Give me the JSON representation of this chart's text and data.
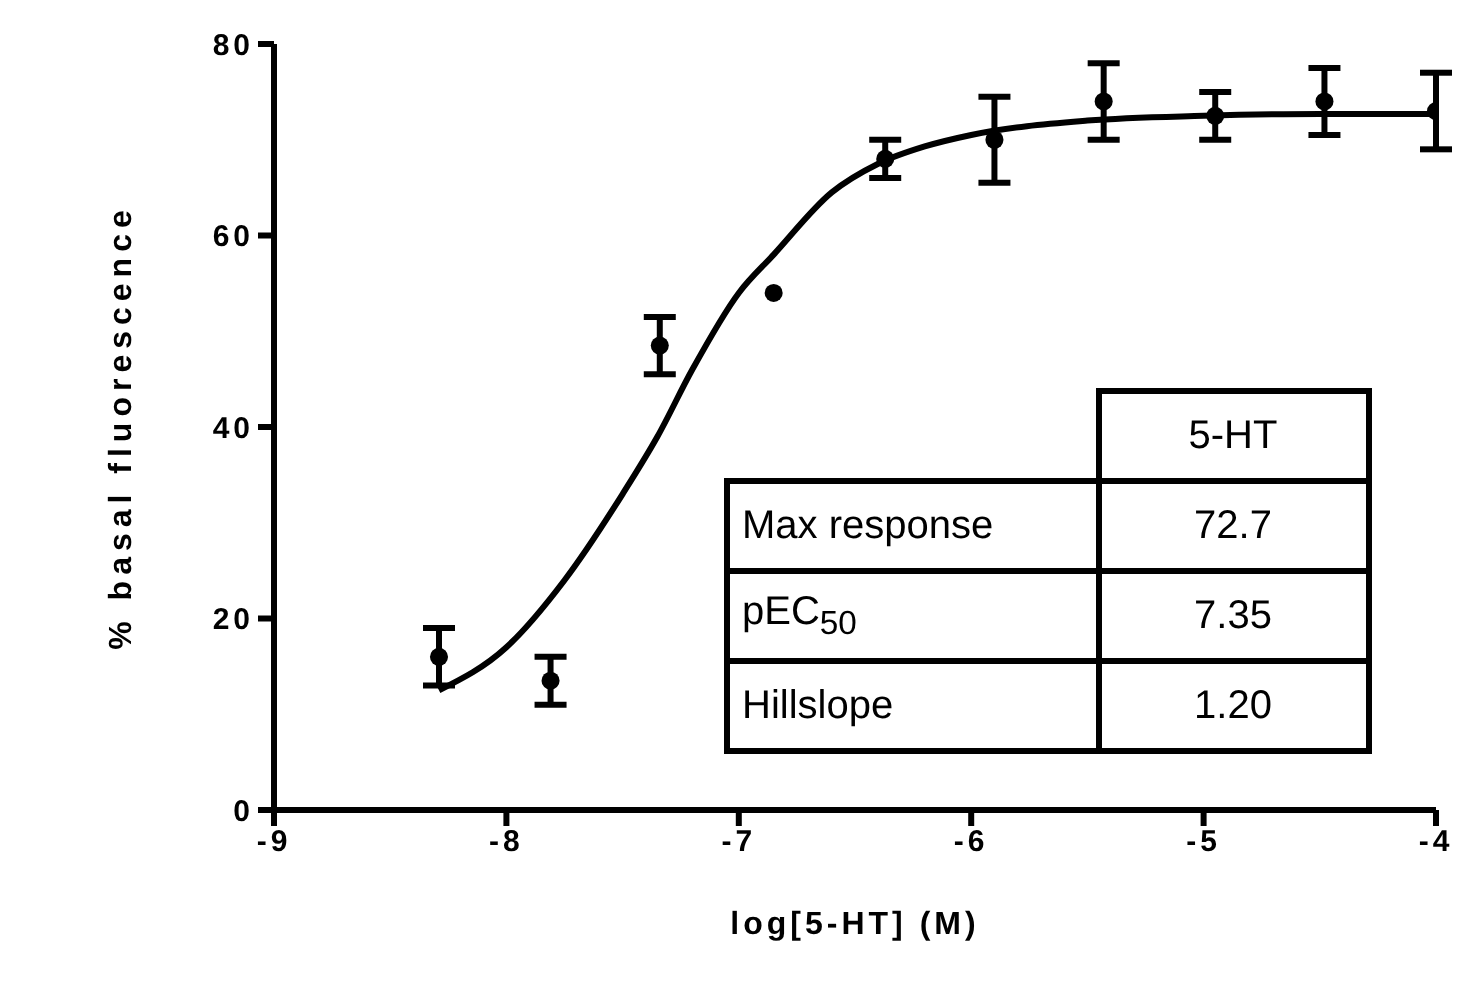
{
  "chart_data": {
    "type": "scatter",
    "xlabel": "log[5-HT] (M)",
    "ylabel": "% basal fluorescence",
    "xlim": [
      -9,
      -4
    ],
    "xticks": [
      -9,
      -8,
      -7,
      -6,
      -5,
      -4
    ],
    "ylim": [
      0,
      80
    ],
    "yticks": [
      0,
      20,
      40,
      60,
      80
    ],
    "grid": false,
    "legend": false,
    "marker": "circle",
    "series": [
      {
        "color": "#000000",
        "x": [
          -8.29,
          -7.81,
          -7.34,
          -6.85,
          -6.37,
          -5.9,
          -5.43,
          -4.95,
          -4.48,
          -4.0
        ],
        "values": [
          16,
          13.5,
          48.5,
          54,
          68,
          70,
          74,
          72.5,
          74,
          73
        ],
        "errors": [
          3,
          2.5,
          3,
          null,
          2,
          4.5,
          4,
          2.5,
          3.5,
          4
        ]
      },
      {
        "type": "line",
        "color": "#000000",
        "marker": "none",
        "line_style": "solid",
        "x": [
          -8.29,
          -8,
          -7.75,
          -7.5,
          -7.35,
          -7.2,
          -7,
          -6.85,
          -6.6,
          -6.4,
          -6.2,
          -6,
          -5.5,
          -5,
          -4.5,
          -4
        ],
        "values": [
          12.5,
          17,
          24,
          33,
          39,
          46,
          54,
          58,
          64.5,
          67.5,
          69.3,
          70.5,
          72,
          72.5,
          72.7,
          72.7
        ]
      }
    ],
    "annotations": [
      "5-HT",
      "Max response",
      "72.7",
      "pEC$_{50}$",
      "7.35",
      "Hillslope",
      "1.20"
    ]
  }
}
